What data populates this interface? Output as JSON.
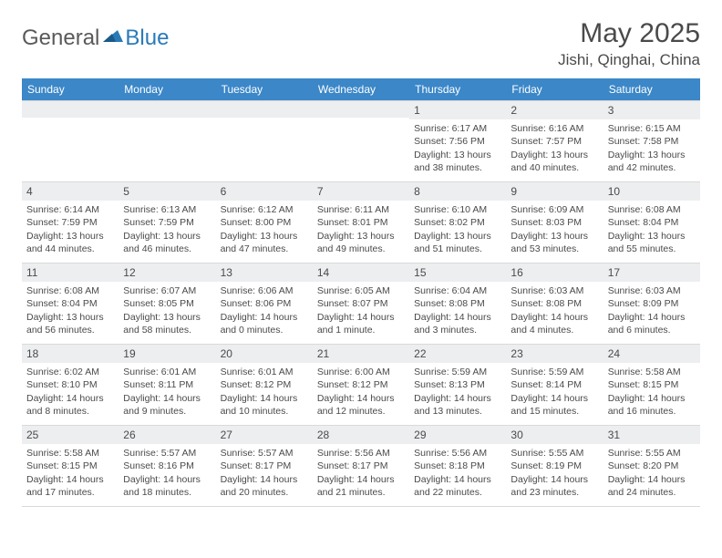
{
  "logo": {
    "part1": "General",
    "part2": "Blue"
  },
  "title": "May 2025",
  "location": "Jishi, Qinghai, China",
  "colors": {
    "header_bg": "#3b87c8",
    "daynum_bg": "#eceef0",
    "text": "#4a4a4a",
    "border": "#d9d9d9",
    "logo_gray": "#5a5a5a",
    "logo_blue": "#2a7ab8"
  },
  "dow": [
    "Sunday",
    "Monday",
    "Tuesday",
    "Wednesday",
    "Thursday",
    "Friday",
    "Saturday"
  ],
  "weeks": [
    [
      null,
      null,
      null,
      null,
      {
        "n": "1",
        "sr": "Sunrise: 6:17 AM",
        "ss": "Sunset: 7:56 PM",
        "dl": "Daylight: 13 hours and 38 minutes."
      },
      {
        "n": "2",
        "sr": "Sunrise: 6:16 AM",
        "ss": "Sunset: 7:57 PM",
        "dl": "Daylight: 13 hours and 40 minutes."
      },
      {
        "n": "3",
        "sr": "Sunrise: 6:15 AM",
        "ss": "Sunset: 7:58 PM",
        "dl": "Daylight: 13 hours and 42 minutes."
      }
    ],
    [
      {
        "n": "4",
        "sr": "Sunrise: 6:14 AM",
        "ss": "Sunset: 7:59 PM",
        "dl": "Daylight: 13 hours and 44 minutes."
      },
      {
        "n": "5",
        "sr": "Sunrise: 6:13 AM",
        "ss": "Sunset: 7:59 PM",
        "dl": "Daylight: 13 hours and 46 minutes."
      },
      {
        "n": "6",
        "sr": "Sunrise: 6:12 AM",
        "ss": "Sunset: 8:00 PM",
        "dl": "Daylight: 13 hours and 47 minutes."
      },
      {
        "n": "7",
        "sr": "Sunrise: 6:11 AM",
        "ss": "Sunset: 8:01 PM",
        "dl": "Daylight: 13 hours and 49 minutes."
      },
      {
        "n": "8",
        "sr": "Sunrise: 6:10 AM",
        "ss": "Sunset: 8:02 PM",
        "dl": "Daylight: 13 hours and 51 minutes."
      },
      {
        "n": "9",
        "sr": "Sunrise: 6:09 AM",
        "ss": "Sunset: 8:03 PM",
        "dl": "Daylight: 13 hours and 53 minutes."
      },
      {
        "n": "10",
        "sr": "Sunrise: 6:08 AM",
        "ss": "Sunset: 8:04 PM",
        "dl": "Daylight: 13 hours and 55 minutes."
      }
    ],
    [
      {
        "n": "11",
        "sr": "Sunrise: 6:08 AM",
        "ss": "Sunset: 8:04 PM",
        "dl": "Daylight: 13 hours and 56 minutes."
      },
      {
        "n": "12",
        "sr": "Sunrise: 6:07 AM",
        "ss": "Sunset: 8:05 PM",
        "dl": "Daylight: 13 hours and 58 minutes."
      },
      {
        "n": "13",
        "sr": "Sunrise: 6:06 AM",
        "ss": "Sunset: 8:06 PM",
        "dl": "Daylight: 14 hours and 0 minutes."
      },
      {
        "n": "14",
        "sr": "Sunrise: 6:05 AM",
        "ss": "Sunset: 8:07 PM",
        "dl": "Daylight: 14 hours and 1 minute."
      },
      {
        "n": "15",
        "sr": "Sunrise: 6:04 AM",
        "ss": "Sunset: 8:08 PM",
        "dl": "Daylight: 14 hours and 3 minutes."
      },
      {
        "n": "16",
        "sr": "Sunrise: 6:03 AM",
        "ss": "Sunset: 8:08 PM",
        "dl": "Daylight: 14 hours and 4 minutes."
      },
      {
        "n": "17",
        "sr": "Sunrise: 6:03 AM",
        "ss": "Sunset: 8:09 PM",
        "dl": "Daylight: 14 hours and 6 minutes."
      }
    ],
    [
      {
        "n": "18",
        "sr": "Sunrise: 6:02 AM",
        "ss": "Sunset: 8:10 PM",
        "dl": "Daylight: 14 hours and 8 minutes."
      },
      {
        "n": "19",
        "sr": "Sunrise: 6:01 AM",
        "ss": "Sunset: 8:11 PM",
        "dl": "Daylight: 14 hours and 9 minutes."
      },
      {
        "n": "20",
        "sr": "Sunrise: 6:01 AM",
        "ss": "Sunset: 8:12 PM",
        "dl": "Daylight: 14 hours and 10 minutes."
      },
      {
        "n": "21",
        "sr": "Sunrise: 6:00 AM",
        "ss": "Sunset: 8:12 PM",
        "dl": "Daylight: 14 hours and 12 minutes."
      },
      {
        "n": "22",
        "sr": "Sunrise: 5:59 AM",
        "ss": "Sunset: 8:13 PM",
        "dl": "Daylight: 14 hours and 13 minutes."
      },
      {
        "n": "23",
        "sr": "Sunrise: 5:59 AM",
        "ss": "Sunset: 8:14 PM",
        "dl": "Daylight: 14 hours and 15 minutes."
      },
      {
        "n": "24",
        "sr": "Sunrise: 5:58 AM",
        "ss": "Sunset: 8:15 PM",
        "dl": "Daylight: 14 hours and 16 minutes."
      }
    ],
    [
      {
        "n": "25",
        "sr": "Sunrise: 5:58 AM",
        "ss": "Sunset: 8:15 PM",
        "dl": "Daylight: 14 hours and 17 minutes."
      },
      {
        "n": "26",
        "sr": "Sunrise: 5:57 AM",
        "ss": "Sunset: 8:16 PM",
        "dl": "Daylight: 14 hours and 18 minutes."
      },
      {
        "n": "27",
        "sr": "Sunrise: 5:57 AM",
        "ss": "Sunset: 8:17 PM",
        "dl": "Daylight: 14 hours and 20 minutes."
      },
      {
        "n": "28",
        "sr": "Sunrise: 5:56 AM",
        "ss": "Sunset: 8:17 PM",
        "dl": "Daylight: 14 hours and 21 minutes."
      },
      {
        "n": "29",
        "sr": "Sunrise: 5:56 AM",
        "ss": "Sunset: 8:18 PM",
        "dl": "Daylight: 14 hours and 22 minutes."
      },
      {
        "n": "30",
        "sr": "Sunrise: 5:55 AM",
        "ss": "Sunset: 8:19 PM",
        "dl": "Daylight: 14 hours and 23 minutes."
      },
      {
        "n": "31",
        "sr": "Sunrise: 5:55 AM",
        "ss": "Sunset: 8:20 PM",
        "dl": "Daylight: 14 hours and 24 minutes."
      }
    ]
  ]
}
